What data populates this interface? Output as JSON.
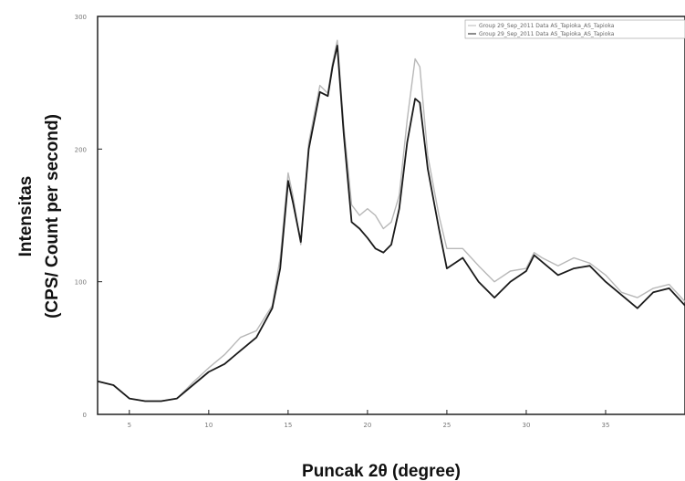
{
  "chart_data": {
    "type": "line",
    "title": "",
    "xlabel": "Puncak 2θ (degree)",
    "ylabel_line1": "Intensitas",
    "ylabel_line2": "(CPS/ Count per second)",
    "xlim": [
      3,
      40
    ],
    "ylim": [
      0,
      300
    ],
    "x_ticks": [
      5,
      10,
      15,
      20,
      25,
      30,
      35
    ],
    "y_ticks": [
      0,
      100,
      200,
      300
    ],
    "grid": false,
    "legend_position": "top-right",
    "legend": [
      "Group 29_Sep_2011 Data AS_Tapioka_AS_Tapioka",
      "Group 29_Sep_2011 Data AS_Tapioka_AS_Tapioka"
    ],
    "series": [
      {
        "color": "#1a1a1a",
        "x": [
          3,
          4,
          5,
          6,
          7,
          8,
          9,
          10,
          11,
          12,
          13,
          14,
          14.5,
          15,
          15.3,
          15.8,
          16.3,
          17,
          17.5,
          17.8,
          18.1,
          18.5,
          19,
          19.5,
          20,
          20.5,
          21,
          21.5,
          22,
          22.5,
          23,
          23.3,
          23.8,
          24.5,
          25,
          26,
          27,
          28,
          29,
          30,
          30.5,
          31,
          32,
          33,
          34,
          35,
          36,
          37,
          38,
          39,
          40
        ],
        "y": [
          25,
          22,
          12,
          10,
          10,
          12,
          22,
          32,
          38,
          48,
          58,
          80,
          110,
          176,
          160,
          130,
          200,
          243,
          240,
          262,
          278,
          212,
          145,
          140,
          133,
          125,
          122,
          128,
          155,
          205,
          238,
          235,
          185,
          140,
          110,
          118,
          100,
          88,
          100,
          108,
          120,
          115,
          105,
          110,
          112,
          100,
          90,
          80,
          92,
          95,
          82
        ]
      },
      {
        "color": "#b8b8b8",
        "x": [
          3,
          4,
          5,
          6,
          7,
          8,
          9,
          10,
          11,
          12,
          13,
          14,
          14.5,
          15,
          15.3,
          15.8,
          16.3,
          17,
          17.5,
          17.8,
          18.1,
          18.5,
          19,
          19.5,
          20,
          20.5,
          21,
          21.5,
          22,
          22.5,
          23,
          23.3,
          23.8,
          24.5,
          25,
          26,
          27,
          28,
          29,
          30,
          30.5,
          31,
          32,
          33,
          34,
          35,
          36,
          37,
          38,
          39,
          40
        ],
        "y": [
          25,
          22,
          12,
          10,
          10,
          12,
          24,
          35,
          45,
          58,
          63,
          82,
          118,
          182,
          165,
          128,
          205,
          248,
          242,
          265,
          282,
          218,
          158,
          150,
          155,
          150,
          140,
          145,
          165,
          222,
          268,
          262,
          195,
          150,
          125,
          125,
          112,
          100,
          108,
          110,
          122,
          118,
          112,
          118,
          114,
          105,
          92,
          88,
          95,
          98,
          85
        ]
      }
    ]
  }
}
